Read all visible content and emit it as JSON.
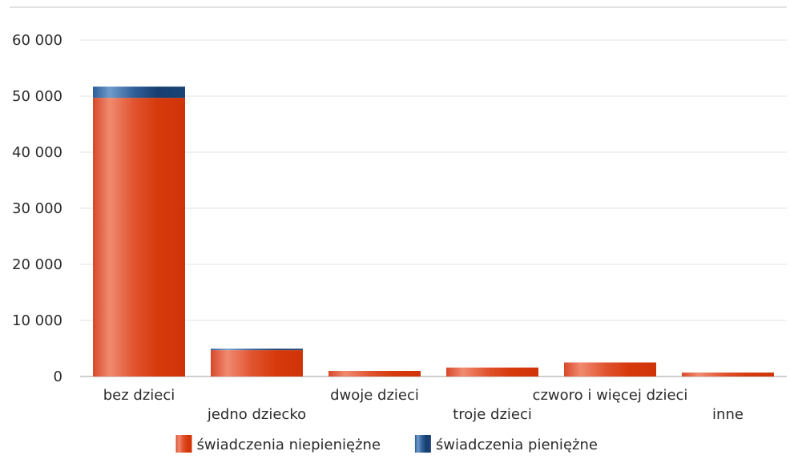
{
  "chart_data": {
    "type": "bar",
    "stacked": true,
    "categories": [
      "bez dzieci",
      "jedno dziecko",
      "dwoje dzieci",
      "troje dzieci",
      "czworo i więcej dzieci",
      "inne"
    ],
    "series": [
      {
        "name": "świadczenia niepieniężne",
        "color": "#d93a10",
        "values": [
          49700,
          4700,
          1000,
          1600,
          2500,
          700
        ]
      },
      {
        "name": "świadczenia pieniężne",
        "color": "#1f4e86",
        "values": [
          2000,
          250,
          0,
          0,
          0,
          0
        ]
      }
    ],
    "yticks": [
      "0",
      "10 000",
      "20 000",
      "30 000",
      "40 000",
      "50 000",
      "60 000"
    ],
    "ylim": [
      0,
      60000
    ],
    "grid": true,
    "legend_position": "bottom"
  }
}
